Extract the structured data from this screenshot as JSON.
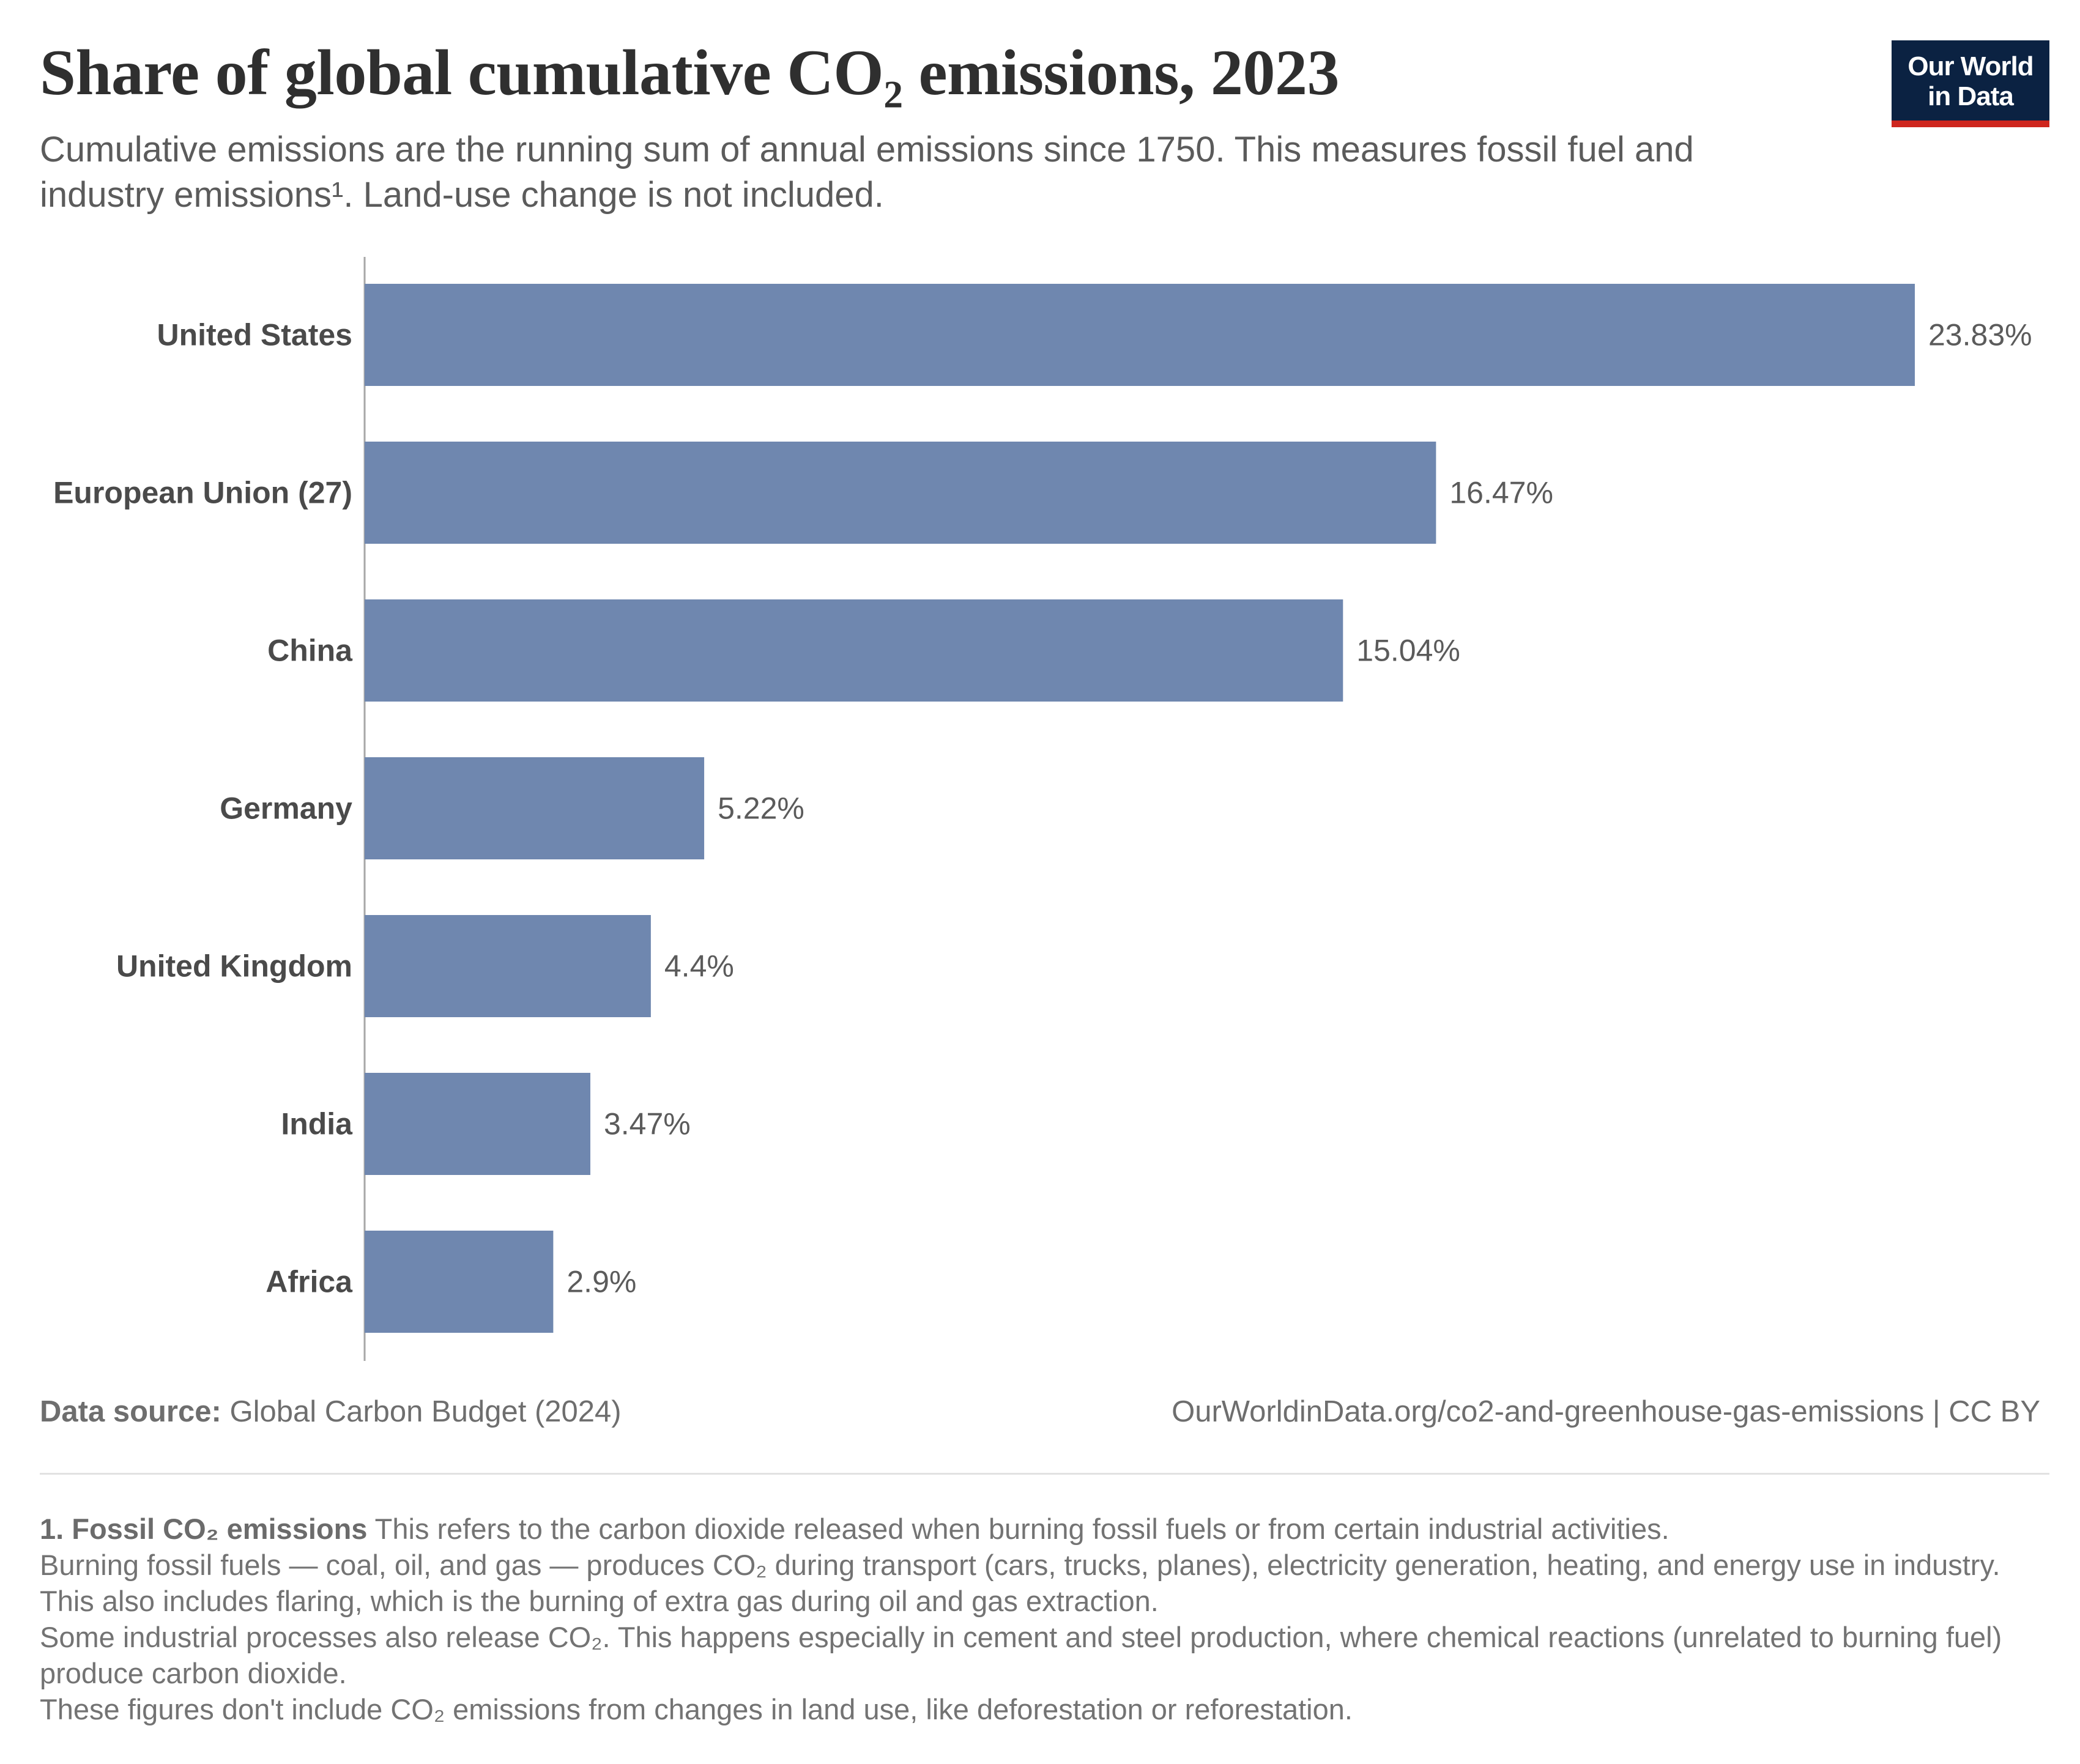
{
  "header": {
    "title": "Share of global cumulative CO₂ emissions, 2023",
    "subtitle": "Cumulative emissions are the running sum of annual emissions since 1750. This measures fossil fuel and industry emissions¹. Land-use change is not included."
  },
  "logo": {
    "line1": "Our World",
    "line2": "in Data",
    "bg_color": "#0b2242",
    "accent_color": "#ce261e"
  },
  "chart_data": {
    "type": "bar",
    "orientation": "horizontal",
    "title": "Share of global cumulative CO₂ emissions, 2023",
    "categories": [
      "United States",
      "European Union (27)",
      "China",
      "Germany",
      "United Kingdom",
      "India",
      "Africa"
    ],
    "values": [
      23.83,
      16.47,
      15.04,
      5.22,
      4.4,
      3.47,
      2.9
    ],
    "value_labels": [
      "23.83%",
      "16.47%",
      "15.04%",
      "5.22%",
      "4.4%",
      "3.47%",
      "2.9%"
    ],
    "unit": "%",
    "xlabel": "",
    "ylabel": "",
    "xlim": [
      0,
      23.83
    ],
    "bar_color": "#6f87af",
    "grid": false
  },
  "footer": {
    "source_label": "Data source:",
    "source_value": "Global Carbon Budget (2024)",
    "url": "OurWorldinData.org/co2-and-greenhouse-gas-emissions",
    "license": "| CC BY"
  },
  "footnote": {
    "marker": "1. Fossil CO₂ emissions",
    "line1": "This refers to the carbon dioxide released when burning fossil fuels or from certain industrial activities.",
    "line2": "Burning fossil fuels — coal, oil, and gas — produces CO₂ during transport (cars, trucks, planes), electricity generation, heating, and energy use in industry. This also includes flaring, which is the burning of extra gas during oil and gas extraction.",
    "line3": "Some industrial processes also release CO₂. This happens especially in cement and steel production, where chemical reactions (unrelated to burning fuel) produce carbon dioxide.",
    "line4": "These figures don't include CO₂ emissions from changes in land use, like deforestation or reforestation."
  }
}
